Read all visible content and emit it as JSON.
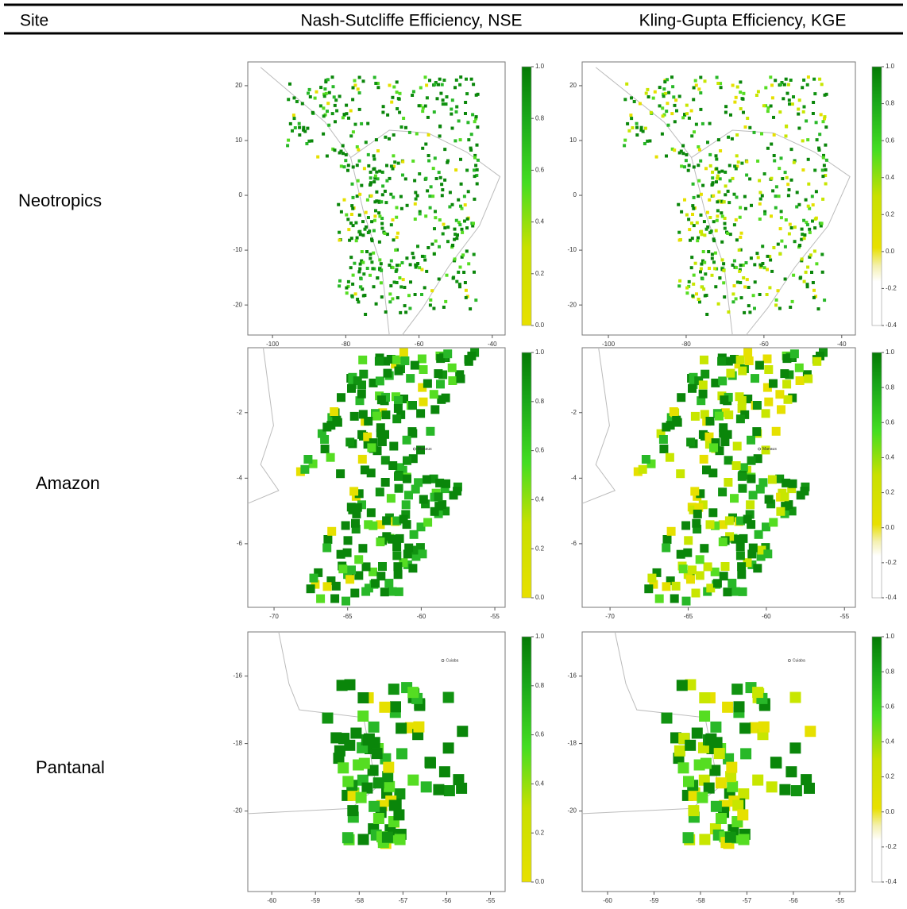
{
  "table": {
    "headers": [
      "Site",
      "Nash-Sutcliffe Efficiency, NSE",
      "Kling-Gupta Efficiency, KGE"
    ],
    "rows": [
      {
        "site": "Neotropics",
        "xticks": [
          "-100",
          "-80",
          "-60",
          "-40"
        ],
        "yticks": [
          "20",
          "10",
          "0",
          "-10",
          "-20"
        ],
        "place": null
      },
      {
        "site": "Amazon",
        "xticks": [
          "-70",
          "-65",
          "-60",
          "-55"
        ],
        "yticks": [
          "-2",
          "-4",
          "-6"
        ],
        "place": "Manaus"
      },
      {
        "site": "Pantanal",
        "xticks": [
          "-60",
          "-59",
          "-58",
          "-57",
          "-56",
          "-55"
        ],
        "yticks": [
          "-16",
          "-18",
          "-20"
        ],
        "place": "Cuiaba"
      }
    ],
    "colorbars": [
      [
        "1.0",
        "0.8",
        "0.6",
        "0.4",
        "0.2",
        "0.0"
      ],
      [
        "1.0",
        "0.8",
        "0.6",
        "0.4",
        "0.2",
        "0.0",
        "-0.2",
        "-0.4"
      ]
    ]
  }
}
